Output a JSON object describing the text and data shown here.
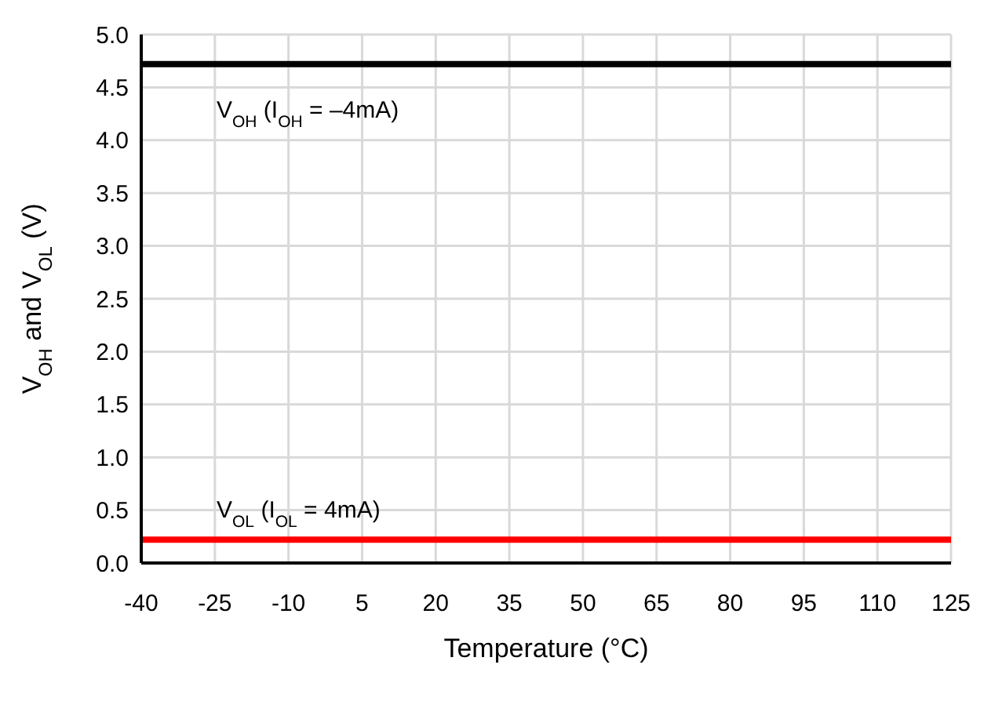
{
  "chart_data": {
    "type": "line",
    "xlabel": "Temperature (°C)",
    "ylabel": "V$_{OH}$ and V$_{OL}$ (V)",
    "x": [
      -40,
      125
    ],
    "series": [
      {
        "name": "V$_{OH}$ (I$_{OH}$ = –4mA)",
        "color": "#000000",
        "values": [
          4.72,
          4.72
        ]
      },
      {
        "name": "V$_{OL}$ (I$_{OL}$ = 4mA)",
        "color": "#ff0000",
        "values": [
          0.22,
          0.22
        ]
      }
    ],
    "xlim": [
      -40,
      125
    ],
    "xticks": [
      -40,
      -25,
      -10,
      5,
      20,
      35,
      50,
      65,
      80,
      95,
      110,
      125
    ],
    "ylim": [
      0,
      5
    ],
    "yticks": [
      {
        "value": 0,
        "label": "0.0"
      },
      {
        "value": 0.5,
        "label": "0.5"
      },
      {
        "value": 1,
        "label": "1.0"
      },
      {
        "value": 1.5,
        "label": "1.5"
      },
      {
        "value": 2,
        "label": "2.0"
      },
      {
        "value": 2.5,
        "label": "2.5"
      },
      {
        "value": 3,
        "label": "3.0"
      },
      {
        "value": 3.5,
        "label": "3.5"
      },
      {
        "value": 4,
        "label": "4.0"
      },
      {
        "value": 4.5,
        "label": "4.5"
      },
      {
        "value": 5,
        "label": "5.0"
      }
    ],
    "grid": true,
    "marker": "none",
    "line_style": "solid",
    "legend": false
  }
}
